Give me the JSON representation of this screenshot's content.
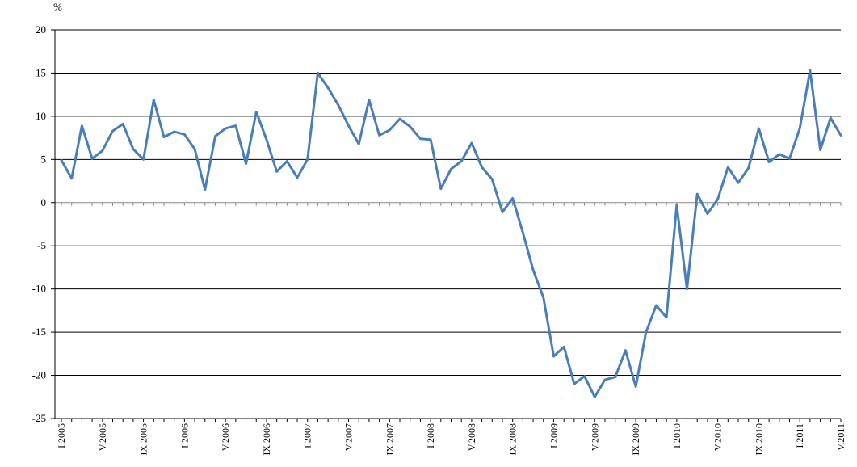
{
  "chart_data": {
    "type": "line",
    "unit_label": "%",
    "ylim": [
      -25,
      20
    ],
    "y_ticks": [
      20,
      15,
      10,
      5,
      0,
      -5,
      -10,
      -15,
      -20,
      -25
    ],
    "grid": true,
    "legend": "none",
    "x_tick_labels": [
      {
        "index": 0,
        "label": "I.2005"
      },
      {
        "index": 4,
        "label": "V.2005"
      },
      {
        "index": 8,
        "label": "IX.2005"
      },
      {
        "index": 12,
        "label": "I.2006"
      },
      {
        "index": 16,
        "label": "V.2006"
      },
      {
        "index": 20,
        "label": "IX.2006"
      },
      {
        "index": 24,
        "label": "I.2007"
      },
      {
        "index": 28,
        "label": "V.2007"
      },
      {
        "index": 32,
        "label": "IX.2007"
      },
      {
        "index": 36,
        "label": "I.2008"
      },
      {
        "index": 40,
        "label": "V.2008"
      },
      {
        "index": 44,
        "label": "IX.2008"
      },
      {
        "index": 48,
        "label": "I.2009"
      },
      {
        "index": 52,
        "label": "V.2009"
      },
      {
        "index": 56,
        "label": "IX.2009"
      },
      {
        "index": 60,
        "label": "I.2010"
      },
      {
        "index": 64,
        "label": "V.2010"
      },
      {
        "index": 68,
        "label": "IX.2010"
      },
      {
        "index": 72,
        "label": "I.2011"
      },
      {
        "index": 76,
        "label": "V.2011"
      }
    ],
    "series": [
      {
        "color": "#4a7ebb",
        "values": [
          4.9,
          2.8,
          8.9,
          5.1,
          6.0,
          8.3,
          9.1,
          6.2,
          5.0,
          11.9,
          7.6,
          8.2,
          7.9,
          6.2,
          1.5,
          7.7,
          8.6,
          8.9,
          4.5,
          10.5,
          7.3,
          3.6,
          4.8,
          2.9,
          5.0,
          15.0,
          13.3,
          11.3,
          8.9,
          6.8,
          11.9,
          7.8,
          8.4,
          9.7,
          8.8,
          7.4,
          7.3,
          1.6,
          3.9,
          4.8,
          6.9,
          4.1,
          2.7,
          -1.1,
          0.5,
          -3.5,
          -7.8,
          -11.0,
          -17.8,
          -16.7,
          -21.0,
          -20.1,
          -22.5,
          -20.5,
          -20.2,
          -17.1,
          -21.3,
          -15.0,
          -11.9,
          -13.3,
          -0.3,
          -10.0,
          1.0,
          -1.3,
          0.4,
          4.1,
          2.3,
          4.0,
          8.6,
          4.7,
          5.6,
          5.1,
          8.6,
          15.3,
          6.1,
          9.8,
          7.8
        ]
      }
    ]
  }
}
